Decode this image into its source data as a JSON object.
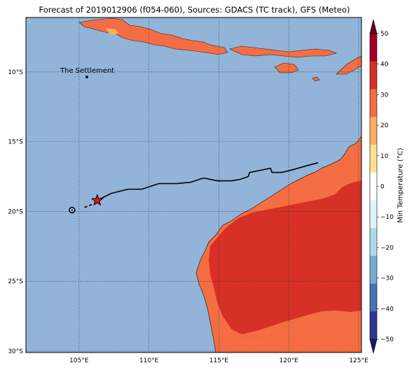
{
  "title": "Forecast of 2019012906 (f054-060), Sources: GDACS (TC track), GFS (Meteo)",
  "map": {
    "lon_range": [
      101.2,
      125.2
    ],
    "lat_range": [
      -30.1,
      -6.1
    ],
    "lon_ticks": [
      "105°E",
      "110°E",
      "115°E",
      "120°E",
      "125°E"
    ],
    "lat_ticks": [
      "10°S",
      "15°S",
      "20°S",
      "25°S",
      "30°S"
    ],
    "place_label": "The Settlement",
    "place_coord": [
      105.7,
      -10.4
    ],
    "ocean_color": "#92b4d8",
    "warm_color": "#f46d43",
    "hot_color": "#d73027"
  },
  "track": {
    "coords": [
      [
        106.3,
        -19.2
      ],
      [
        107.3,
        -18.7
      ],
      [
        108.5,
        -18.4
      ],
      [
        109.5,
        -18.4
      ],
      [
        110.7,
        -18.0
      ],
      [
        112.0,
        -18.0
      ],
      [
        113.0,
        -17.9
      ],
      [
        113.9,
        -17.6
      ],
      [
        114.9,
        -17.8
      ],
      [
        115.9,
        -17.8
      ],
      [
        116.5,
        -17.7
      ],
      [
        117.1,
        -17.5
      ],
      [
        117.2,
        -17.2
      ],
      [
        118.7,
        -16.9
      ],
      [
        118.8,
        -17.2
      ],
      [
        119.5,
        -17.2
      ],
      [
        120.3,
        -17.0
      ],
      [
        121.0,
        -16.8
      ],
      [
        122.1,
        -16.5
      ]
    ],
    "dashed_coords": [
      [
        105.4,
        -19.7
      ],
      [
        105.9,
        -19.5
      ]
    ],
    "current_position": [
      106.3,
      -19.2
    ],
    "start_position": [
      104.5,
      -19.9
    ]
  },
  "colorbar": {
    "label": "Min Temperature (°C)",
    "ticks": [
      "50",
      "40",
      "30",
      "20",
      "10",
      "0",
      "−10",
      "−20",
      "−30",
      "−40",
      "−50"
    ],
    "colors": [
      "#67001f",
      "#a50026",
      "#d73027",
      "#f46d43",
      "#fdae61",
      "#fee090",
      "#ffffff",
      "#e0f3f8",
      "#abd9e9",
      "#74add1",
      "#4575b4",
      "#313695",
      "#1a1a6e"
    ]
  }
}
